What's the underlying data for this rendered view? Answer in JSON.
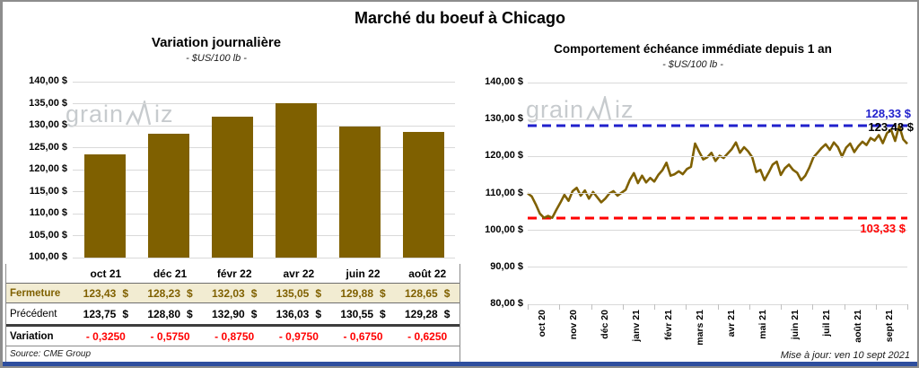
{
  "page": {
    "title": "Marché du boeuf à Chicago",
    "source": "Source: CME Group",
    "updated": "Mise à jour: ven 10 sept 2021",
    "watermark_prefix": "grain",
    "watermark_suffix": "iz"
  },
  "colors": {
    "series_gold": "#7F6000",
    "max_blue": "#2020CC",
    "min_red": "#FF0000",
    "fermeture_bg": "#F2ECD2",
    "gridline": "#D9D9D9",
    "watermark": "#C7CBCE"
  },
  "table": {
    "columns": [
      "oct 21",
      "déc 21",
      "févr 22",
      "avr 22",
      "juin 22",
      "août 22"
    ],
    "currency": "$",
    "rows": [
      {
        "label": "Fermeture",
        "style": "fermeture",
        "currency": true,
        "values": [
          "123,43",
          "128,23",
          "132,03",
          "135,05",
          "129,88",
          "128,65"
        ]
      },
      {
        "label": "Précédent",
        "style": "precedent",
        "currency": true,
        "values": [
          "123,75",
          "128,80",
          "132,90",
          "136,03",
          "130,55",
          "129,28"
        ]
      },
      {
        "label": "Variation",
        "style": "variation",
        "currency": false,
        "values": [
          "- 0,3250",
          "- 0,5750",
          "- 0,8750",
          "- 0,9750",
          "- 0,6750",
          "- 0,6250"
        ]
      }
    ]
  },
  "chart_data": [
    {
      "type": "bar",
      "title": "Variation journalière",
      "subtitle": "- $US/100 lb -",
      "categories": [
        "oct 21",
        "déc 21",
        "févr 22",
        "avr 22",
        "juin 22",
        "août 22"
      ],
      "values": [
        123.43,
        128.23,
        132.03,
        135.05,
        129.88,
        128.65
      ],
      "ylim": [
        100,
        140
      ],
      "ytick_step": 5,
      "ytick_suffix": " $",
      "grid": true,
      "bar_color": "#7F6000"
    },
    {
      "type": "line",
      "title": "Comportement échéance immédiate depuis 1 an",
      "subtitle": "- $US/100 lb -",
      "x_labels": [
        "oct 20",
        "nov 20",
        "déc 20",
        "janv 21",
        "févr 21",
        "mars 21",
        "avr 21",
        "mai 21",
        "juin 21",
        "juil 21",
        "août 21",
        "sept 21"
      ],
      "values": [
        110.0,
        109.2,
        107.0,
        104.5,
        103.4,
        103.9,
        103.4,
        105.5,
        107.5,
        109.6,
        108.0,
        110.6,
        111.5,
        109.4,
        110.8,
        108.6,
        110.4,
        109.0,
        107.6,
        108.6,
        110.0,
        110.6,
        109.4,
        110.2,
        111.0,
        113.6,
        115.5,
        112.8,
        114.8,
        113.0,
        114.2,
        113.2,
        115.0,
        116.3,
        118.3,
        114.8,
        115.2,
        116.0,
        115.2,
        116.6,
        117.2,
        123.5,
        121.3,
        119.2,
        119.8,
        121.0,
        118.8,
        120.2,
        119.6,
        120.8,
        122.0,
        123.8,
        121.0,
        122.5,
        121.4,
        119.8,
        115.8,
        116.4,
        113.6,
        115.6,
        117.8,
        118.6,
        115.0,
        116.8,
        117.8,
        116.4,
        115.6,
        113.6,
        114.8,
        117.0,
        119.8,
        121.0,
        122.3,
        123.3,
        121.8,
        123.8,
        122.5,
        120.0,
        122.4,
        123.5,
        121.2,
        122.8,
        124.0,
        123.1,
        125.0,
        124.3,
        125.8,
        123.6,
        126.3,
        127.3,
        124.2,
        128.33,
        124.6,
        123.43
      ],
      "ylim": [
        80,
        140
      ],
      "ytick_step": 10,
      "ytick_suffix": " $",
      "grid": true,
      "line_color": "#7F6000",
      "annotations": {
        "max": {
          "value": 128.33,
          "label": "128,33 $",
          "color": "#2020CC",
          "line": "dashed"
        },
        "min": {
          "value": 103.33,
          "label": "103,33 $",
          "color": "#FF0000",
          "line": "dashed"
        },
        "last": {
          "value": 123.43,
          "label": "123,43 $",
          "color": "#000000"
        }
      }
    }
  ]
}
